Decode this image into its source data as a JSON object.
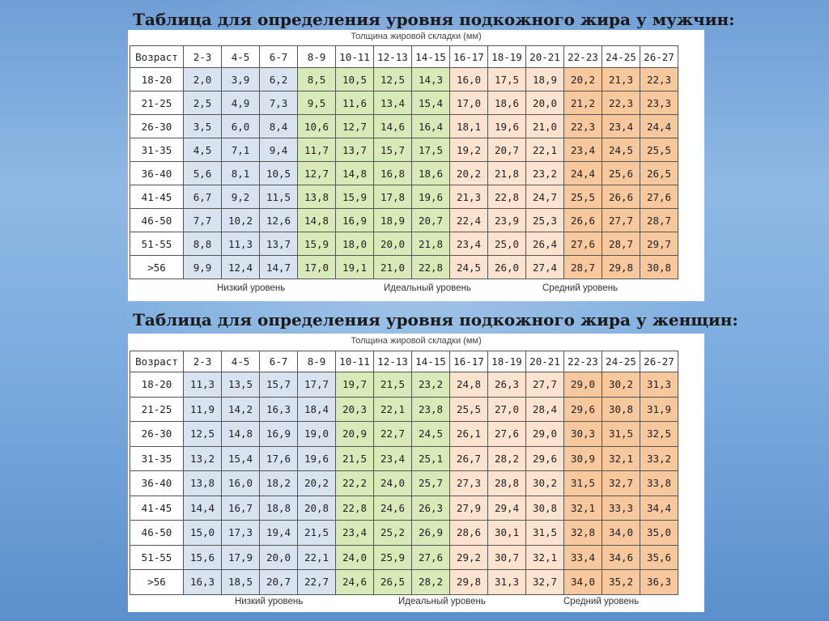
{
  "men": {
    "title": "Таблица для определения уровня подкожного жира у мужчин:",
    "caption": "Толщина жировой складки (мм)",
    "header": [
      "Возраст",
      "2-3",
      "4-5",
      "6-7",
      "8-9",
      "10-11",
      "12-13",
      "14-15",
      "16-17",
      "18-19",
      "20-21",
      "22-23",
      "24-25",
      "26-27"
    ],
    "rows": [
      [
        "18-20",
        "2,0",
        "3,9",
        "6,2",
        "8,5",
        "10,5",
        "12,5",
        "14,3",
        "16,0",
        "17,5",
        "18,9",
        "20,2",
        "21,3",
        "22,3"
      ],
      [
        "21-25",
        "2,5",
        "4,9",
        "7,3",
        "9,5",
        "11,6",
        "13,4",
        "15,4",
        "17,0",
        "18,6",
        "20,0",
        "21,2",
        "22,3",
        "23,3"
      ],
      [
        "26-30",
        "3,5",
        "6,0",
        "8,4",
        "10,6",
        "12,7",
        "14,6",
        "16,4",
        "18,1",
        "19,6",
        "21,0",
        "22,3",
        "23,4",
        "24,4"
      ],
      [
        "31-35",
        "4,5",
        "7,1",
        "9,4",
        "11,7",
        "13,7",
        "15,7",
        "17,5",
        "19,2",
        "20,7",
        "22,1",
        "23,4",
        "24,5",
        "25,5"
      ],
      [
        "36-40",
        "5,6",
        "8,1",
        "10,5",
        "12,7",
        "14,8",
        "16,8",
        "18,6",
        "20,2",
        "21,8",
        "23,2",
        "24,4",
        "25,6",
        "26,5"
      ],
      [
        "41-45",
        "6,7",
        "9,2",
        "11,5",
        "13,8",
        "15,9",
        "17,8",
        "19,6",
        "21,3",
        "22,8",
        "24,7",
        "25,5",
        "26,6",
        "27,6"
      ],
      [
        "46-50",
        "7,7",
        "10,2",
        "12,6",
        "14,8",
        "16,9",
        "18,9",
        "20,7",
        "22,4",
        "23,9",
        "25,3",
        "26,6",
        "27,7",
        "28,7"
      ],
      [
        "51-55",
        "8,8",
        "11,3",
        "13,7",
        "15,9",
        "18,0",
        "20,0",
        "21,8",
        "23,4",
        "25,0",
        "26,4",
        "27,6",
        "28,7",
        "29,7"
      ],
      [
        ">56",
        "9,9",
        "12,4",
        "14,7",
        "17,0",
        "19,1",
        "21,0",
        "22,8",
        "24,5",
        "26,0",
        "27,4",
        "28,7",
        "29,8",
        "30,8"
      ]
    ],
    "legend": [
      "Низкий уровень",
      "Идеальный уровень",
      "Средний уровень"
    ]
  },
  "women": {
    "title": "Таблица для определения уровня подкожного жира у женщин:",
    "caption": "Толщина жировой складки (мм)",
    "header": [
      "Возраст",
      "2-3",
      "4-5",
      "6-7",
      "8-9",
      "10-11",
      "12-13",
      "14-15",
      "16-17",
      "18-19",
      "20-21",
      "22-23",
      "24-25",
      "26-27"
    ],
    "rows": [
      [
        "18-20",
        "11,3",
        "13,5",
        "15,7",
        "17,7",
        "19,7",
        "21,5",
        "23,2",
        "24,8",
        "26,3",
        "27,7",
        "29,0",
        "30,2",
        "31,3"
      ],
      [
        "21-25",
        "11,9",
        "14,2",
        "16,3",
        "18,4",
        "20,3",
        "22,1",
        "23,8",
        "25,5",
        "27,0",
        "28,4",
        "29,6",
        "30,8",
        "31,9"
      ],
      [
        "26-30",
        "12,5",
        "14,8",
        "16,9",
        "19,0",
        "20,9",
        "22,7",
        "24,5",
        "26,1",
        "27,6",
        "29,0",
        "30,3",
        "31,5",
        "32,5"
      ],
      [
        "31-35",
        "13,2",
        "15,4",
        "17,6",
        "19,6",
        "21,5",
        "23,4",
        "25,1",
        "26,7",
        "28,2",
        "29,6",
        "30,9",
        "32,1",
        "33,2"
      ],
      [
        "36-40",
        "13,8",
        "16,0",
        "18,2",
        "20,2",
        "22,2",
        "24,0",
        "25,7",
        "27,3",
        "28,8",
        "30,2",
        "31,5",
        "32,7",
        "33,8"
      ],
      [
        "41-45",
        "14,4",
        "16,7",
        "18,8",
        "20,8",
        "22,8",
        "24,6",
        "26,3",
        "27,9",
        "29,4",
        "30,8",
        "32,1",
        "33,3",
        "34,4"
      ],
      [
        "46-50",
        "15,0",
        "17,3",
        "19,4",
        "21,5",
        "23,4",
        "25,2",
        "26,9",
        "28,6",
        "30,1",
        "31,5",
        "32,8",
        "34,0",
        "35,0"
      ],
      [
        "51-55",
        "15,6",
        "17,9",
        "20,0",
        "22,1",
        "24,0",
        "25,9",
        "27,6",
        "29,2",
        "30,7",
        "32,1",
        "33,4",
        "34,6",
        "35,6"
      ],
      [
        ">56",
        "16,3",
        "18,5",
        "20,7",
        "22,7",
        "24,6",
        "26,5",
        "28,2",
        "29,8",
        "31,3",
        "32,7",
        "34,0",
        "35,2",
        "36,3"
      ]
    ],
    "legend": [
      "Низкий уровень",
      "Идеальный уровень",
      "Средний уровень"
    ]
  },
  "colors": {
    "low": "#d9e3f0",
    "ideal": "#d8eab8",
    "mid": "#fce3cf",
    "high": "#f7c79d",
    "background": "#7eaedf"
  }
}
